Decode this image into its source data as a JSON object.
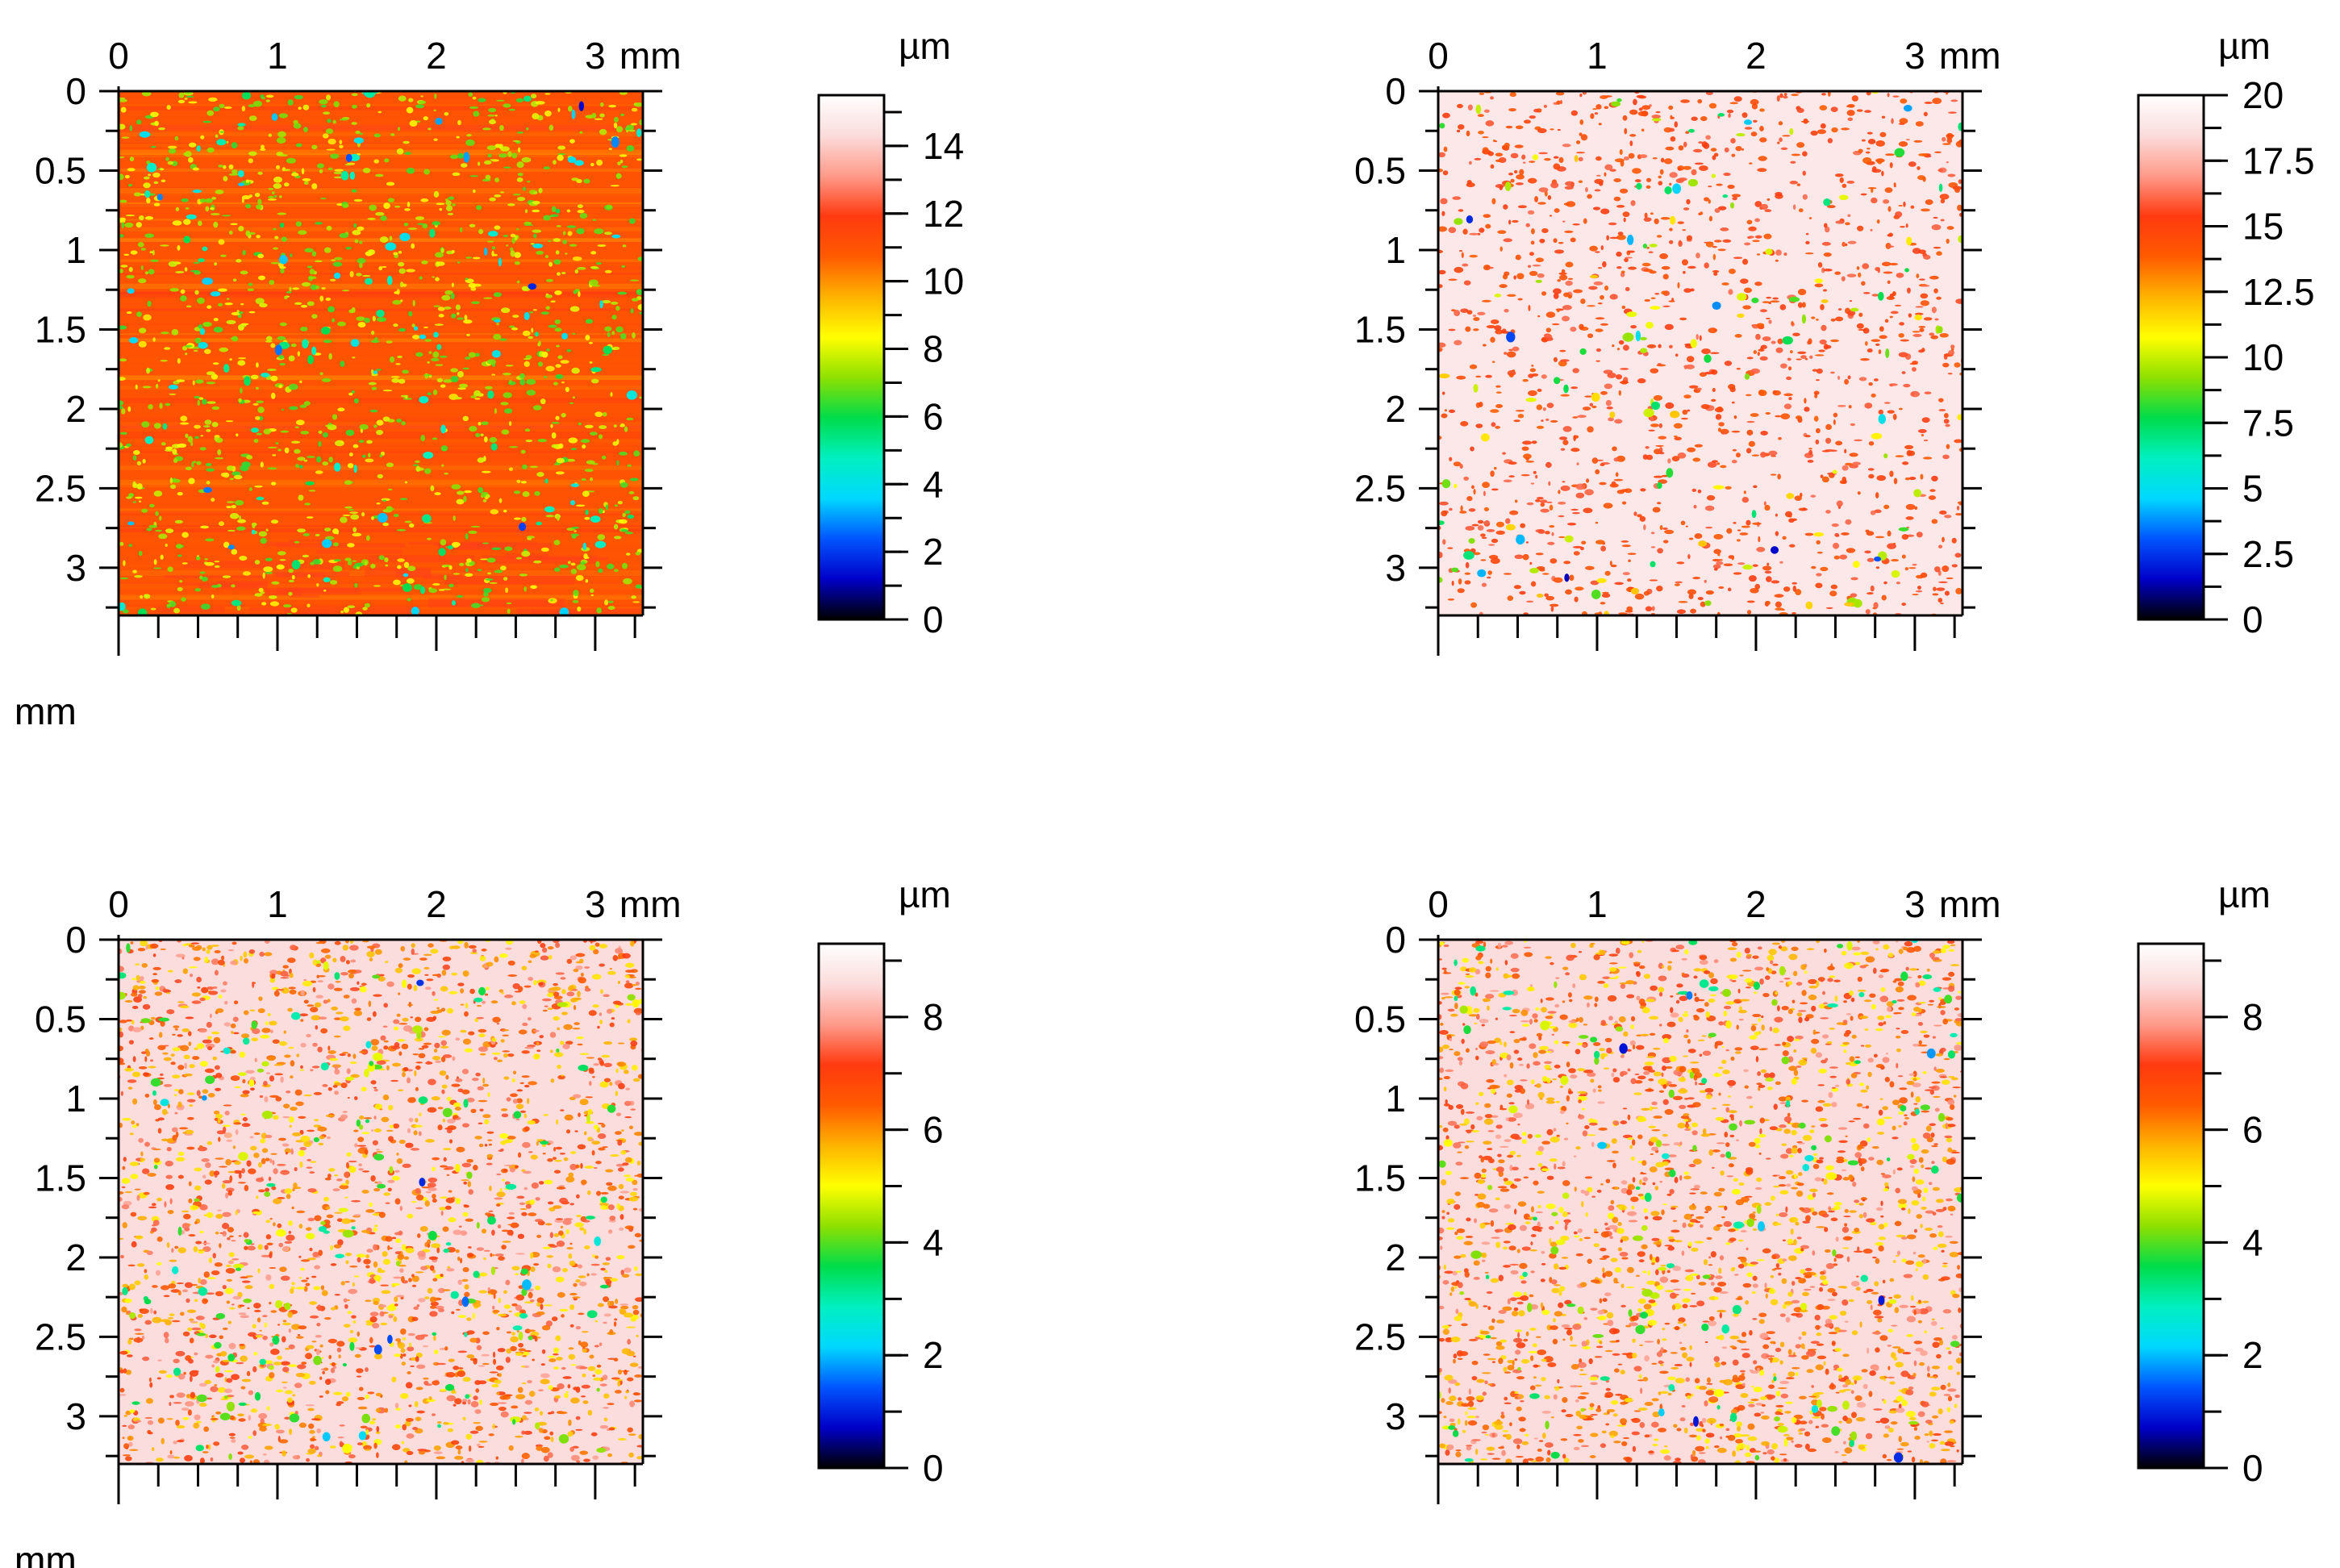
{
  "chart_data": [
    {
      "type": "heatmap",
      "title": "",
      "position": "top-left",
      "xlabel": "mm",
      "ylabel": "mm",
      "x_ticks": [
        0,
        1,
        2,
        3
      ],
      "x_tick_labels": [
        "0",
        "1",
        "2",
        "3"
      ],
      "y_ticks": [
        0,
        0.5,
        1,
        1.5,
        2,
        2.5,
        3
      ],
      "y_tick_labels": [
        "0",
        "0.5",
        "1",
        "1.5",
        "2",
        "2.5",
        "3"
      ],
      "xlim": [
        0,
        3.3
      ],
      "ylim": [
        0,
        3.3
      ],
      "surface": {
        "background_height": 11,
        "feature_height": 7.5,
        "feature_density": "medium",
        "streaked": true
      },
      "colorbar": {
        "unit": "µm",
        "range": [
          0,
          15.5
        ],
        "ticks": [
          0,
          2,
          4,
          6,
          8,
          10,
          12,
          14
        ],
        "tick_labels": [
          "0",
          "2",
          "4",
          "6",
          "8",
          "10",
          "12",
          "14"
        ],
        "minor_step": 1
      }
    },
    {
      "type": "heatmap",
      "title": "",
      "position": "top-right",
      "xlabel": "mm",
      "ylabel": "mm",
      "x_ticks": [
        0,
        1,
        2,
        3
      ],
      "x_tick_labels": [
        "0",
        "1",
        "2",
        "3"
      ],
      "y_ticks": [
        0,
        0.5,
        1,
        1.5,
        2,
        2.5,
        3
      ],
      "y_tick_labels": [
        "0",
        "0.5",
        "1",
        "1.5",
        "2",
        "2.5",
        "3"
      ],
      "xlim": [
        0,
        3.3
      ],
      "ylim": [
        0,
        3.3
      ],
      "surface": {
        "background_height": 19,
        "feature_height": 15,
        "feature_density": "medium",
        "streaked": false
      },
      "colorbar": {
        "unit": "µm",
        "range": [
          0,
          20
        ],
        "ticks": [
          0,
          2.5,
          5,
          7.5,
          10,
          12.5,
          15,
          17.5,
          20
        ],
        "tick_labels": [
          "0",
          "2.5",
          "5",
          "7.5",
          "10",
          "12.5",
          "15",
          "17.5",
          "20"
        ],
        "minor_step": 1.25
      }
    },
    {
      "type": "heatmap",
      "title": "",
      "position": "bottom-left",
      "xlabel": "mm",
      "ylabel": "mm",
      "x_ticks": [
        0,
        1,
        2,
        3
      ],
      "x_tick_labels": [
        "0",
        "1",
        "2",
        "3"
      ],
      "y_ticks": [
        0,
        0.5,
        1,
        1.5,
        2,
        2.5,
        3
      ],
      "y_tick_labels": [
        "0",
        "0.5",
        "1",
        "1.5",
        "2",
        "2.5",
        "3"
      ],
      "xlim": [
        0,
        3.3
      ],
      "ylim": [
        0,
        3.3
      ],
      "surface": {
        "background_height": 8.6,
        "feature_height": 6.5,
        "feature_density": "high",
        "streaked": false
      },
      "colorbar": {
        "unit": "µm",
        "range": [
          0,
          9.3
        ],
        "ticks": [
          0,
          2,
          4,
          6,
          8
        ],
        "tick_labels": [
          "0",
          "2",
          "4",
          "6",
          "8"
        ],
        "minor_step": 1
      }
    },
    {
      "type": "heatmap",
      "title": "",
      "position": "bottom-right",
      "xlabel": "mm",
      "ylabel": "mm",
      "x_ticks": [
        0,
        1,
        2,
        3
      ],
      "x_tick_labels": [
        "0",
        "1",
        "2",
        "3"
      ],
      "y_ticks": [
        0,
        0.5,
        1,
        1.5,
        2,
        2.5,
        3
      ],
      "y_tick_labels": [
        "0",
        "0.5",
        "1",
        "1.5",
        "2",
        "2.5",
        "3"
      ],
      "xlim": [
        0,
        3.3
      ],
      "ylim": [
        0,
        3.3
      ],
      "surface": {
        "background_height": 8.6,
        "feature_height": 6.5,
        "feature_density": "high",
        "streaked": false
      },
      "colorbar": {
        "unit": "µm",
        "range": [
          0,
          9.3
        ],
        "ticks": [
          0,
          2,
          4,
          6,
          8
        ],
        "tick_labels": [
          "0",
          "2",
          "4",
          "6",
          "8"
        ],
        "minor_step": 1
      }
    }
  ],
  "colormap": [
    "#000000",
    "#0000c8",
    "#0055ff",
    "#00d8ff",
    "#00f0c0",
    "#00dc4a",
    "#8fe000",
    "#ffff00",
    "#ffb300",
    "#ff5a00",
    "#ff3a10",
    "#ff9a8a",
    "#fbdcdc",
    "#ffffff"
  ]
}
